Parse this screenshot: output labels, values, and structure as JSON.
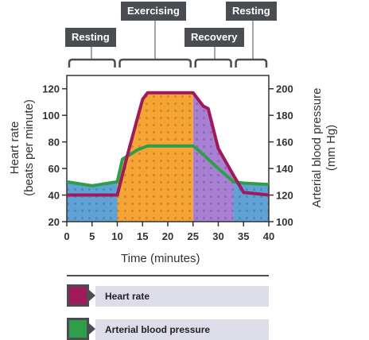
{
  "phases": [
    {
      "label": "Resting"
    },
    {
      "label": "Exercising"
    },
    {
      "label": "Recovery"
    },
    {
      "label": "Resting"
    }
  ],
  "legend": [
    {
      "label": "Heart rate",
      "color": "#a0195a"
    },
    {
      "label": "Arterial blood pressure",
      "color": "#2e9e4a"
    }
  ],
  "colors": {
    "resting_fill": "#5fa3d6",
    "exercise_fill": "#f6a534",
    "recovery_fill": "#a981d4",
    "heart_rate_line": "#a0195a",
    "blood_pressure_line": "#2e9e4a",
    "tag_bg": "#4a4d52"
  },
  "chart_data": {
    "type": "line",
    "xlabel": "Time (minutes)",
    "ylabel_left": "Heart rate\n(beats per minute)",
    "ylabel_right": "Arterial blood pressure\n(mm Hg)",
    "xlim": [
      0,
      40
    ],
    "ylim_left": [
      20,
      130
    ],
    "ylim_right": [
      100,
      210
    ],
    "x_ticks": [
      0,
      5,
      10,
      15,
      20,
      25,
      30,
      35,
      40
    ],
    "y_ticks_left": [
      20,
      40,
      60,
      80,
      100,
      120
    ],
    "y_ticks_right": [
      100,
      120,
      140,
      160,
      180,
      200
    ],
    "grid": false,
    "phases": [
      {
        "label": "Resting",
        "start": 0,
        "end": 10
      },
      {
        "label": "Exercising",
        "start": 10,
        "end": 25
      },
      {
        "label": "Recovery",
        "start": 25,
        "end": 33
      },
      {
        "label": "Resting",
        "start": 33,
        "end": 40
      }
    ],
    "series": [
      {
        "name": "Heart rate",
        "axis": "left",
        "x": [
          0,
          10,
          12,
          14,
          15,
          16,
          20,
          25,
          27,
          28,
          29,
          30,
          33,
          35,
          40
        ],
        "y": [
          40,
          40,
          70,
          98,
          112,
          117,
          117,
          117,
          107,
          105,
          90,
          75,
          55,
          42,
          40
        ]
      },
      {
        "name": "Arterial blood pressure",
        "axis": "right",
        "x": [
          0,
          5,
          10,
          11,
          14,
          16,
          20,
          25,
          26,
          30,
          33,
          35,
          40
        ],
        "y": [
          130,
          127,
          130,
          147,
          154,
          157,
          157,
          157,
          154,
          140,
          130,
          129,
          128
        ]
      }
    ]
  }
}
